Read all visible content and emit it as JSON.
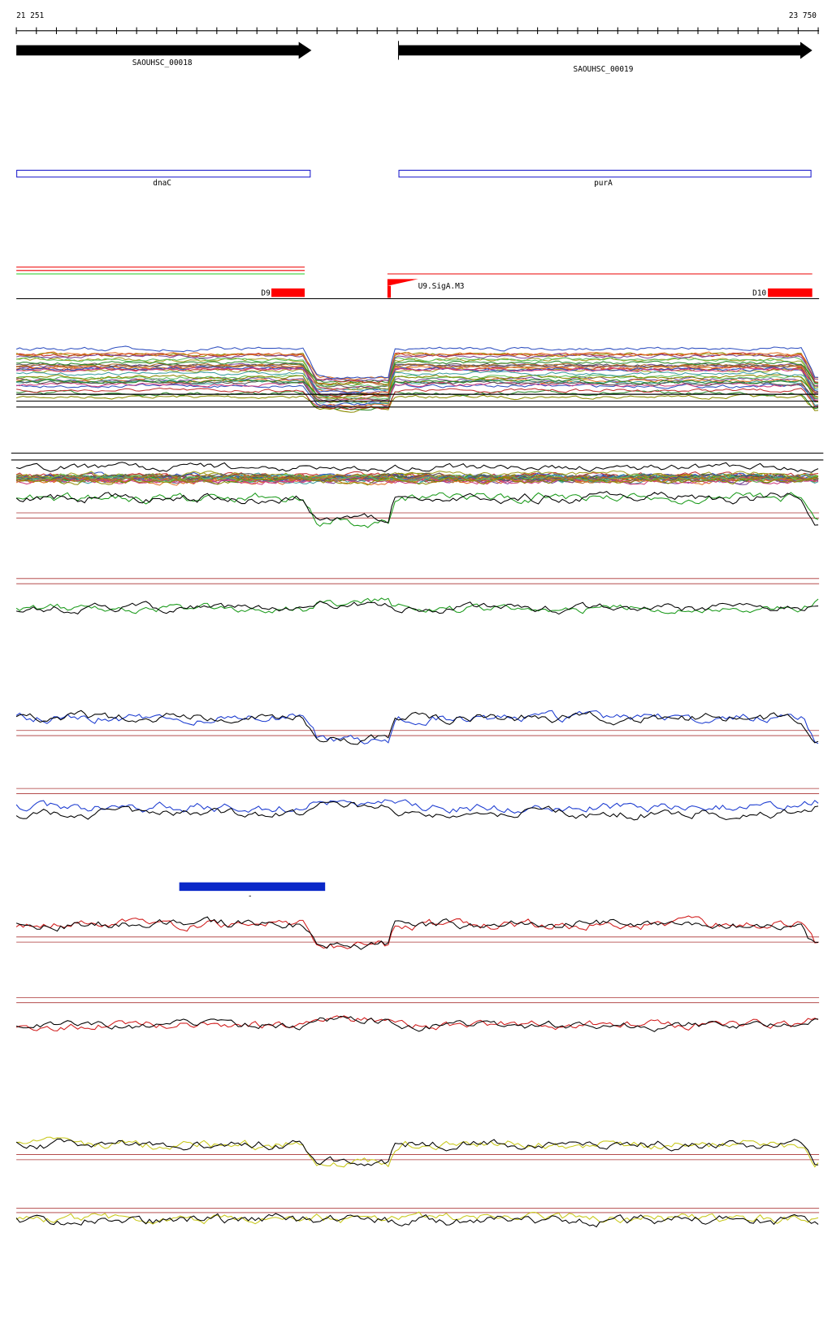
{
  "ruler": {
    "start": "21 251",
    "end": "23 750"
  },
  "genes": [
    {
      "label": "SAOUHSC_00018"
    },
    {
      "label": "SAOUHSC_00019"
    }
  ],
  "gene_names": [
    {
      "label": "dnaC"
    },
    {
      "label": "purA"
    }
  ],
  "features": [
    {
      "label": "D9"
    },
    {
      "label": "U9.SigA.M3"
    },
    {
      "label": "D10"
    }
  ],
  "highlight": {
    "label": "-"
  }
}
